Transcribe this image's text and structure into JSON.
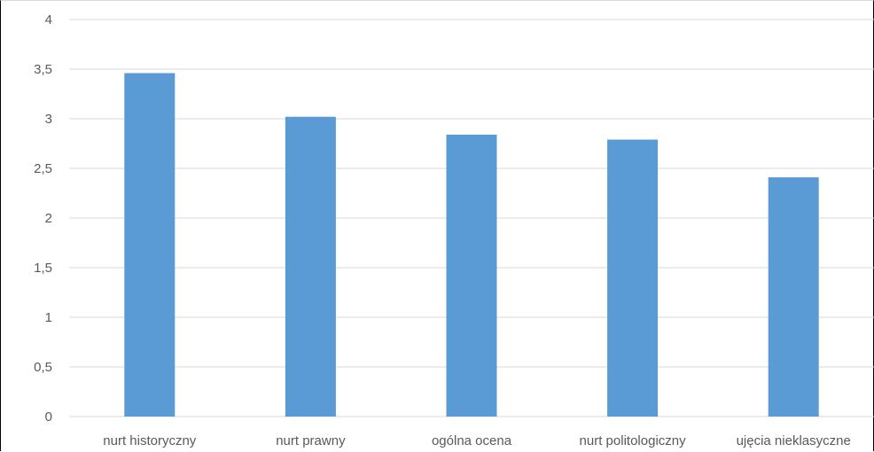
{
  "chart_data": {
    "type": "bar",
    "categories": [
      "nurt historyczny",
      "nurt prawny",
      "ogólna ocena",
      "nurt politologiczny",
      "ujęcia nieklasyczne"
    ],
    "series": [
      {
        "values": [
          3.46,
          3.02,
          2.84,
          2.79,
          2.41
        ]
      }
    ],
    "title": "",
    "xlabel": "",
    "ylabel": "",
    "ylim": [
      0,
      4
    ],
    "yticks": [
      "0",
      "0,5",
      "1",
      "1,5",
      "2",
      "2,5",
      "3",
      "3,5",
      "4"
    ],
    "grid": true,
    "legend": "none"
  },
  "colors": {
    "bar": "#5b9bd5",
    "grid": "#d9d9d9",
    "text": "#595959"
  }
}
